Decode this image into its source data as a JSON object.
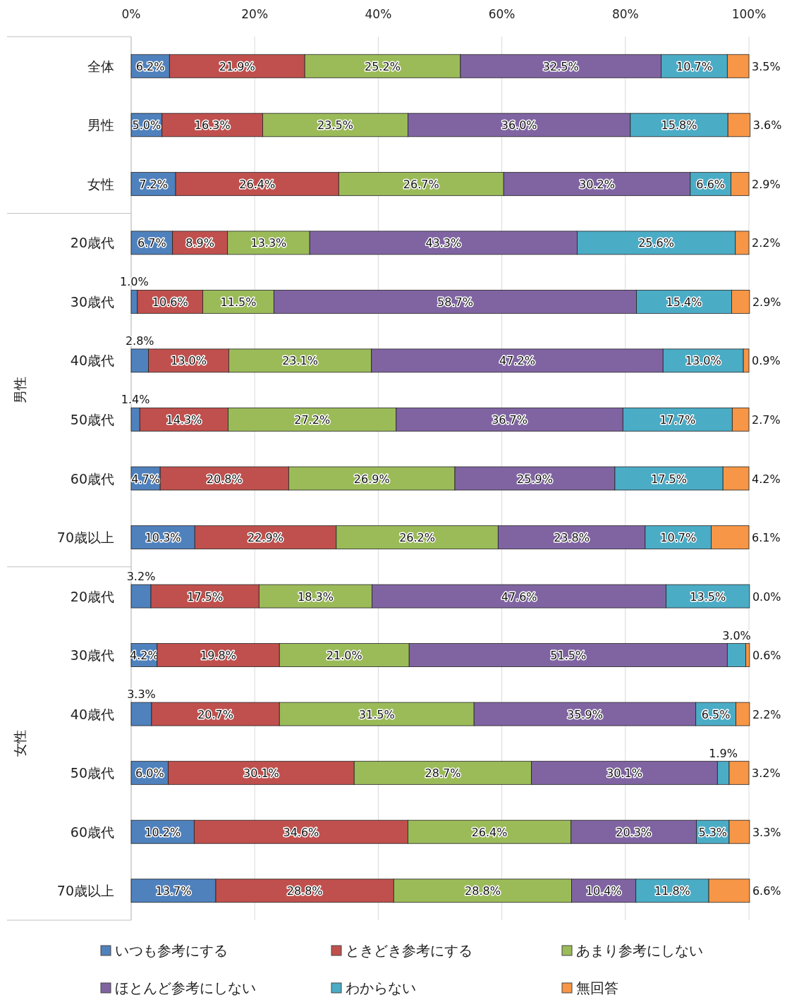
{
  "chart_data": {
    "type": "bar",
    "orientation": "horizontal",
    "stacked": true,
    "categories": [
      "全体",
      "男性",
      "女性",
      "20歳代",
      "30歳代",
      "40歳代",
      "50歳代",
      "60歳代",
      "70歳以上",
      "20歳代",
      "30歳代",
      "40歳代",
      "50歳代",
      "60歳代",
      "70歳以上"
    ],
    "annotations": [
      "男性",
      "女性"
    ],
    "xlim": [
      0,
      100
    ],
    "xticks": [
      {
        "value": 0,
        "label": "0%"
      },
      {
        "value": 20,
        "label": "20%"
      },
      {
        "value": 40,
        "label": "40%"
      },
      {
        "value": 60,
        "label": "60%"
      },
      {
        "value": 80,
        "label": "80%"
      },
      {
        "value": 100,
        "label": "100%"
      }
    ],
    "grid": "x",
    "legend": "bottom",
    "series": [
      {
        "name": "いつも参考にする",
        "color": "#4f81bd",
        "values": [
          6.2,
          5.0,
          7.2,
          6.7,
          1.0,
          2.8,
          1.4,
          4.7,
          10.3,
          3.2,
          4.2,
          3.3,
          6.0,
          10.2,
          13.7
        ],
        "value_labels": [
          "6.2%",
          "5.0%",
          "7.2%",
          "6.7%",
          "1.0%",
          "2.8%",
          "1.4%",
          "4.7%",
          "10.3%",
          "3.2%",
          "4.2%",
          "3.3%",
          "6.0%",
          "10.2%",
          "13.7%"
        ]
      },
      {
        "name": "ときどき参考にする",
        "color": "#c0504d",
        "values": [
          21.9,
          16.3,
          26.4,
          8.9,
          10.6,
          13.0,
          14.3,
          20.8,
          22.9,
          17.5,
          19.8,
          20.7,
          30.1,
          34.6,
          28.8
        ],
        "value_labels": [
          "21.9%",
          "16.3%",
          "26.4%",
          "8.9%",
          "10.6%",
          "13.0%",
          "14.3%",
          "20.8%",
          "22.9%",
          "17.5%",
          "19.8%",
          "20.7%",
          "30.1%",
          "34.6%",
          "28.8%"
        ]
      },
      {
        "name": "あまり参考にしない",
        "color": "#9bbb59",
        "values": [
          25.2,
          23.5,
          26.7,
          13.3,
          11.5,
          23.1,
          27.2,
          26.9,
          26.2,
          18.3,
          21.0,
          31.5,
          28.7,
          26.4,
          28.8
        ],
        "value_labels": [
          "25.2%",
          "23.5%",
          "26.7%",
          "13.3%",
          "11.5%",
          "23.1%",
          "27.2%",
          "26.9%",
          "26.2%",
          "18.3%",
          "21.0%",
          "31.5%",
          "28.7%",
          "26.4%",
          "28.8%"
        ]
      },
      {
        "name": "ほとんど参考にしない",
        "color": "#8064a2",
        "values": [
          32.5,
          36.0,
          30.2,
          43.3,
          58.7,
          47.2,
          36.7,
          25.9,
          23.8,
          47.6,
          51.5,
          35.9,
          30.1,
          20.3,
          10.4
        ],
        "value_labels": [
          "32.5%",
          "36.0%",
          "30.2%",
          "43.3%",
          "58.7%",
          "47.2%",
          "36.7%",
          "25.9%",
          "23.8%",
          "47.6%",
          "51.5%",
          "35.9%",
          "30.1%",
          "20.3%",
          "10.4%"
        ]
      },
      {
        "name": "わからない",
        "color": "#4bacc6",
        "values": [
          10.7,
          15.8,
          6.6,
          25.6,
          15.4,
          13.0,
          17.7,
          17.5,
          10.7,
          13.5,
          3.0,
          6.5,
          1.9,
          5.3,
          11.8
        ],
        "value_labels": [
          "10.7%",
          "15.8%",
          "6.6%",
          "25.6%",
          "15.4%",
          "13.0%",
          "17.7%",
          "17.5%",
          "10.7%",
          "13.5%",
          "3.0%",
          "6.5%",
          "1.9%",
          "5.3%",
          "11.8%"
        ]
      },
      {
        "name": "無回答",
        "color": "#f79646",
        "values": [
          3.5,
          3.6,
          2.9,
          2.2,
          2.9,
          0.9,
          2.7,
          4.2,
          6.1,
          0.0,
          0.6,
          2.2,
          3.2,
          3.3,
          6.6
        ],
        "value_labels": [
          "3.5%",
          "3.6%",
          "2.9%",
          "2.2%",
          "2.9%",
          "0.9%",
          "2.7%",
          "4.2%",
          "6.1%",
          "0.0%",
          "0.6%",
          "2.2%",
          "3.2%",
          "3.3%",
          "6.6%"
        ]
      }
    ]
  }
}
